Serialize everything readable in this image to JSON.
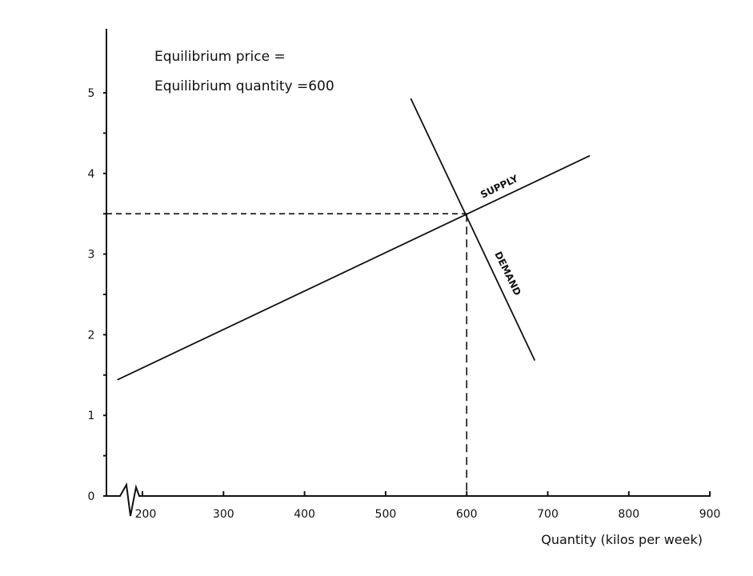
{
  "chart_data": {
    "type": "line",
    "title": "",
    "annotations": [
      "Equilibrium price =",
      "Equilibrium quantity =600"
    ],
    "xlabel": "Quantity (kilos per week)",
    "ylabel": "",
    "xlim": [
      200,
      900
    ],
    "ylim": [
      0,
      5.8
    ],
    "x_axis_break": true,
    "x_ticks": [
      200,
      300,
      400,
      500,
      600,
      700,
      800,
      900
    ],
    "x_tick_labels": [
      "200",
      "300",
      "400",
      "500",
      "600",
      "700",
      "800",
      "900"
    ],
    "y_ticks": [
      0,
      1,
      2,
      3,
      4,
      5
    ],
    "y_tick_labels": [
      "0",
      "1",
      "2",
      "3",
      "4",
      "5"
    ],
    "y_minor_ticks": [
      0.5,
      1.5,
      2.5,
      3.5,
      4.5
    ],
    "grid": false,
    "series": [
      {
        "name": "SUPPLY",
        "points": [
          [
            169,
            1.44
          ],
          [
            752,
            4.22
          ]
        ]
      },
      {
        "name": "DEMAND",
        "points": [
          [
            531,
            4.93
          ],
          [
            684,
            1.68
          ]
        ]
      }
    ],
    "equilibrium": {
      "x": 600,
      "y": 3.5
    },
    "color": "#111111"
  }
}
